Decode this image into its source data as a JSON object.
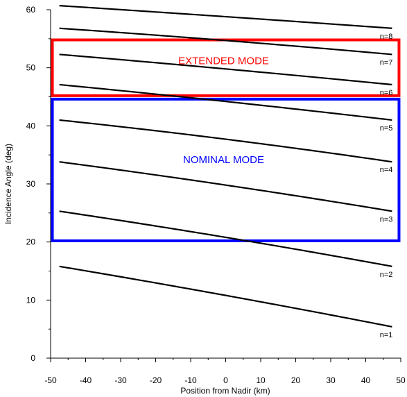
{
  "chart_data": {
    "type": "line",
    "title": "",
    "xlabel": "Position from Nadir (km)",
    "ylabel": "Incidence Angle (deg)",
    "xlim": [
      -50,
      50
    ],
    "ylim": [
      0,
      60
    ],
    "x_ticks": [
      "-50",
      "-40",
      "-30",
      "-20",
      "-10",
      "0",
      "10",
      "20",
      "30",
      "40",
      "50"
    ],
    "y_ticks": [
      "0",
      "10",
      "20",
      "30",
      "40",
      "50",
      "60"
    ],
    "grid": false,
    "legend": "none",
    "series": [
      {
        "name": "n=1",
        "x": [
          -47.5,
          0,
          47.5
        ],
        "y": [
          15.8,
          10.8,
          5.4
        ]
      },
      {
        "name": "n=2",
        "x": [
          -47.5,
          0,
          47.5
        ],
        "y": [
          25.3,
          20.8,
          15.8
        ]
      },
      {
        "name": "n=3",
        "x": [
          -47.5,
          0,
          47.5
        ],
        "y": [
          33.8,
          29.8,
          25.3
        ]
      },
      {
        "name": "n=4",
        "x": [
          -47.5,
          0,
          47.5
        ],
        "y": [
          41.0,
          37.7,
          33.8
        ]
      },
      {
        "name": "n=5",
        "x": [
          -47.5,
          0,
          47.5
        ],
        "y": [
          47.1,
          44.2,
          41.0
        ]
      },
      {
        "name": "n=6",
        "x": [
          -47.5,
          0,
          47.5
        ],
        "y": [
          52.3,
          49.8,
          47.1
        ]
      },
      {
        "name": "n=7",
        "x": [
          -47.5,
          0,
          47.5
        ],
        "y": [
          56.8,
          54.7,
          52.3
        ]
      },
      {
        "name": "n=8",
        "x": [
          -47.5,
          0,
          47.5
        ],
        "y": [
          60.7,
          58.8,
          56.8
        ]
      }
    ],
    "annotations": [
      {
        "text": "EXTENDED MODE",
        "color": "#ff0000",
        "x_range": [
          -49.5,
          49.5
        ],
        "y_range": [
          45.2,
          54.8
        ]
      },
      {
        "text": "NOMINAL MODE",
        "color": "#0000ff",
        "x_range": [
          -49.5,
          49.5
        ],
        "y_range": [
          20.2,
          44.6
        ]
      }
    ]
  }
}
